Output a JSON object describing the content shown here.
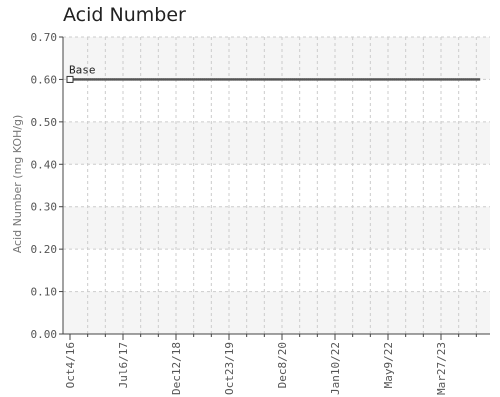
{
  "chart_data": {
    "type": "line",
    "title": "Acid Number",
    "ylabel": "Acid Number (mg KOH/g)",
    "xlabel": "",
    "ylim": [
      0,
      0.7
    ],
    "yticks": [
      "0.00",
      "0.10",
      "0.20",
      "0.30",
      "0.40",
      "0.50",
      "0.60",
      "0.70"
    ],
    "xticks": [
      "Oct4/16",
      "Jul6/17",
      "Dec12/18",
      "Oct23/19",
      "Dec8/20",
      "Jan10/22",
      "May9/22",
      "Mar27/23"
    ],
    "grid": true,
    "series": [
      {
        "name": "Base",
        "value": 0.6,
        "point_count": 200
      }
    ],
    "colors": {
      "series": "#555555",
      "grid": "#cccccc",
      "band": "#f5f5f5",
      "axis": "#444444"
    }
  }
}
